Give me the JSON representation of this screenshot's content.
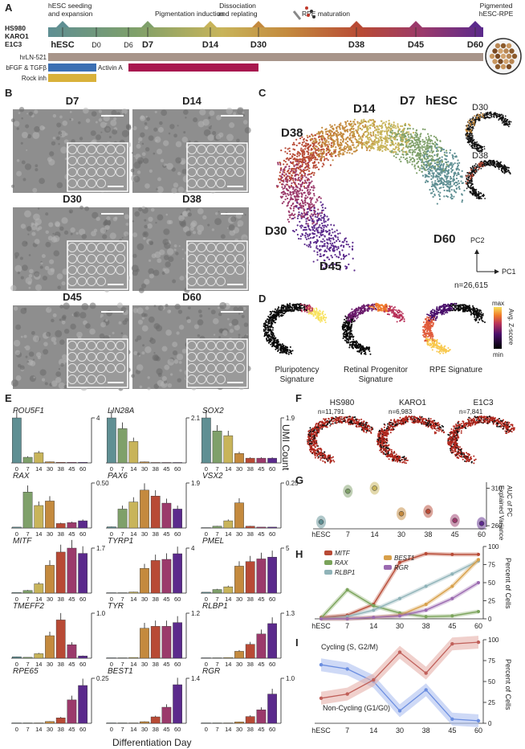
{
  "colors": {
    "d0": "#5f8f93",
    "d7": "#7fa06a",
    "d14": "#c8b45a",
    "d30": "#c48a3e",
    "d38": "#b84a35",
    "d45": "#9b3a6b",
    "d60": "#5b2a8c",
    "activin": "#a8184f",
    "rock": "#d9b13a",
    "bfgf": "#3b6fb3",
    "lam": "#a8958a"
  },
  "panelA": {
    "letter": "A",
    "cell_lines": [
      "HS980",
      "KARO1",
      "E1C3"
    ],
    "phase_labels": [
      "hESC seeding\nand expansion",
      "Pigmentation induction",
      "Dissociation\nand replating",
      "RPE maturation",
      "Pigmented\nhESC-RPE"
    ],
    "timepoints": [
      "hESC",
      "D0",
      "D6",
      "D7",
      "D14",
      "D30",
      "D38",
      "D45",
      "D60"
    ],
    "conditions": [
      "hrLN-521",
      "bFGF & TGFβ",
      "Rock inh",
      "Activin A"
    ]
  },
  "panelB": {
    "letter": "B",
    "images": [
      "D7",
      "D14",
      "D30",
      "D38",
      "D45",
      "D60"
    ]
  },
  "panelC": {
    "letter": "C",
    "labels": [
      "D7",
      "hESC",
      "D14",
      "D38",
      "D30",
      "D45",
      "D60"
    ],
    "insets": [
      "D30",
      "D38"
    ],
    "pc1": "PC1",
    "pc2": "PC2",
    "n": "n=26,615"
  },
  "panelD": {
    "letter": "D",
    "signatures": [
      "Pluripotency\nSignature",
      "Retinal Progenitor\nSignature",
      "RPE Signature"
    ],
    "scale": {
      "max": "max",
      "min": "min",
      "label": "Avg. Z-score"
    }
  },
  "panelE": {
    "letter": "E",
    "ylabel": "UMI Count",
    "xlabel": "Differentiation Day",
    "x_ticks": [
      "0",
      "7",
      "14",
      "30",
      "38",
      "45",
      "60"
    ]
  },
  "chart_data": [
    {
      "type": "bar",
      "title": "POU5F1",
      "categories": [
        "0",
        "7",
        "14",
        "30",
        "38",
        "45",
        "60"
      ],
      "values": [
        4,
        0.5,
        0.9,
        0.1,
        0.05,
        0.05,
        0.05
      ],
      "ymax": 4,
      "ymax_label": "4"
    },
    {
      "type": "bar",
      "title": "LIN28A",
      "categories": [
        "0",
        "7",
        "14",
        "30",
        "38",
        "45",
        "60"
      ],
      "values": [
        2.1,
        1.6,
        1.0,
        0.05,
        0.02,
        0.02,
        0.02
      ],
      "ymax": 2.1,
      "ymax_label": "2.1"
    },
    {
      "type": "bar",
      "title": "SOX2",
      "categories": [
        "0",
        "7",
        "14",
        "30",
        "38",
        "45",
        "60"
      ],
      "values": [
        1.9,
        1.35,
        1.15,
        0.4,
        0.2,
        0.2,
        0.2
      ],
      "ymax": 1.9,
      "ymax_label": "1.9"
    },
    {
      "type": "bar",
      "title": "RAX",
      "categories": [
        "0",
        "7",
        "14",
        "30",
        "38",
        "45",
        "60"
      ],
      "values": [
        0.01,
        0.4,
        0.25,
        0.3,
        0.05,
        0.06,
        0.08
      ],
      "ymax": 0.5,
      "ymax_label": "0.50"
    },
    {
      "type": "bar",
      "title": "PAX6",
      "categories": [
        "0",
        "7",
        "14",
        "30",
        "38",
        "45",
        "60"
      ],
      "values": [
        0.05,
        0.8,
        1.1,
        1.6,
        1.35,
        1.05,
        0.8
      ],
      "ymax": 1.9,
      "ymax_label": "1.9"
    },
    {
      "type": "bar",
      "title": "VSX2",
      "categories": [
        "0",
        "7",
        "14",
        "30",
        "38",
        "45",
        "60"
      ],
      "values": [
        0,
        0.01,
        0.04,
        0.14,
        0.01,
        0.005,
        0.005
      ],
      "ymax": 0.25,
      "ymax_label": "0.25"
    },
    {
      "type": "bar",
      "title": "MITF",
      "categories": [
        "0",
        "7",
        "14",
        "30",
        "38",
        "45",
        "60"
      ],
      "values": [
        0.02,
        0.1,
        0.35,
        1.05,
        1.55,
        1.7,
        1.5
      ],
      "ymax": 1.7,
      "ymax_label": "1.7"
    },
    {
      "type": "bar",
      "title": "TYRP1",
      "categories": [
        "0",
        "7",
        "14",
        "30",
        "38",
        "45",
        "60"
      ],
      "values": [
        0,
        0,
        0.1,
        2.2,
        2.9,
        3.0,
        3.5
      ],
      "ymax": 4,
      "ymax_label": "4"
    },
    {
      "type": "bar",
      "title": "PMEL",
      "categories": [
        "0",
        "7",
        "14",
        "30",
        "38",
        "45",
        "60"
      ],
      "values": [
        0.1,
        0.4,
        0.7,
        3.0,
        3.5,
        3.8,
        4.0
      ],
      "ymax": 5,
      "ymax_label": "5"
    },
    {
      "type": "bar",
      "title": "TMEFF2",
      "categories": [
        "0",
        "7",
        "14",
        "30",
        "38",
        "45",
        "60"
      ],
      "values": [
        0.03,
        0.02,
        0.1,
        0.5,
        0.85,
        0.3,
        0.05
      ],
      "ymax": 1.0,
      "ymax_label": "1.0"
    },
    {
      "type": "bar",
      "title": "TYR",
      "categories": [
        "0",
        "7",
        "14",
        "30",
        "38",
        "45",
        "60"
      ],
      "values": [
        0,
        0,
        0.02,
        0.8,
        0.85,
        0.85,
        0.95
      ],
      "ymax": 1.2,
      "ymax_label": "1.2"
    },
    {
      "type": "bar",
      "title": "RLBP1",
      "categories": [
        "0",
        "7",
        "14",
        "30",
        "38",
        "45",
        "60"
      ],
      "values": [
        0,
        0,
        0.02,
        0.2,
        0.4,
        0.7,
        1.0
      ],
      "ymax": 1.3,
      "ymax_label": "1.3"
    },
    {
      "type": "bar",
      "title": "RPE65",
      "categories": [
        "0",
        "7",
        "14",
        "30",
        "38",
        "45",
        "60"
      ],
      "values": [
        0,
        0,
        0,
        0.01,
        0.03,
        0.13,
        0.21
      ],
      "ymax": 0.25,
      "ymax_label": "0.25"
    },
    {
      "type": "bar",
      "title": "BEST1",
      "categories": [
        "0",
        "7",
        "14",
        "30",
        "38",
        "45",
        "60"
      ],
      "values": [
        0,
        0,
        0,
        0.05,
        0.2,
        0.5,
        1.2
      ],
      "ymax": 1.4,
      "ymax_label": "1.4"
    },
    {
      "type": "bar",
      "title": "RGR",
      "categories": [
        "0",
        "7",
        "14",
        "30",
        "38",
        "45",
        "60"
      ],
      "values": [
        0,
        0,
        0,
        0.03,
        0.15,
        0.3,
        0.65
      ],
      "ymax": 1.0,
      "ymax_label": "1.0"
    }
  ],
  "panelF": {
    "letter": "F",
    "lines": [
      {
        "name": "HS980",
        "n": "n=11,791"
      },
      {
        "name": "KARO1",
        "n": "n=6,983"
      },
      {
        "name": "E1C3",
        "n": "n=7,841"
      }
    ]
  },
  "panelG": {
    "letter": "G",
    "ylabel": "AUC of PC\nExplained Variance",
    "x": [
      "hESC",
      "7",
      "14",
      "30",
      "38",
      "45",
      "60"
    ],
    "values": [
      265,
      306,
      310,
      276,
      279,
      267,
      263
    ],
    "ylim": [
      258,
      318
    ],
    "yticks": [
      "260",
      "310"
    ]
  },
  "panelH": {
    "letter": "H",
    "ylabel": "Percent of Cells",
    "x": [
      "hESC",
      "7",
      "14",
      "30",
      "38",
      "45",
      "60"
    ],
    "yticks": [
      "0",
      "25",
      "50",
      "75",
      "100"
    ],
    "series": [
      {
        "name": "MITF",
        "values": [
          2,
          5,
          20,
          78,
          90,
          89,
          89
        ]
      },
      {
        "name": "RAX",
        "values": [
          1,
          40,
          18,
          8,
          3,
          4,
          10
        ]
      },
      {
        "name": "RLBP1",
        "values": [
          0,
          3,
          12,
          28,
          45,
          62,
          80
        ]
      },
      {
        "name": "BEST1",
        "values": [
          0,
          0,
          2,
          5,
          20,
          45,
          82
        ]
      },
      {
        "name": "RGR",
        "values": [
          0,
          0,
          2,
          4,
          12,
          28,
          50
        ]
      }
    ]
  },
  "panelI": {
    "letter": "I",
    "ylabel": "Percent of Cells",
    "x": [
      "hESC",
      "7",
      "14",
      "30",
      "38",
      "45",
      "60"
    ],
    "yticks": [
      "0",
      "25",
      "50",
      "75",
      "100"
    ],
    "cycling_label": "Cycling (S, G2/M)",
    "noncycling_label": "Non-Cycling (G1/G0)",
    "series": [
      {
        "name": "Cycling",
        "values": [
          70,
          65,
          50,
          15,
          40,
          5,
          3
        ]
      },
      {
        "name": "Non-Cycling",
        "values": [
          30,
          35,
          52,
          85,
          60,
          95,
          97
        ]
      }
    ]
  }
}
